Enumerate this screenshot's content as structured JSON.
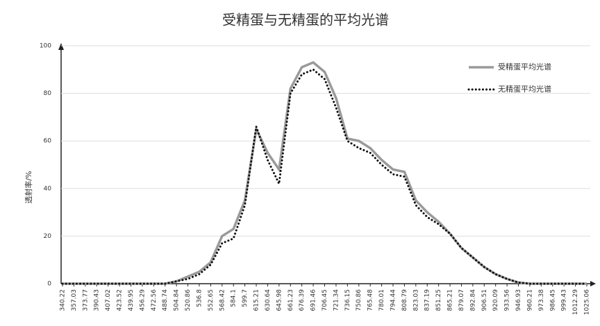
{
  "chart_data": {
    "type": "line",
    "title": "受精蛋与无精蛋的平均光谱",
    "y_label": "透射率/%",
    "categories": [
      "340.22",
      "357.03",
      "373.77",
      "390.43",
      "407.02",
      "423.52",
      "439.95",
      "456.29",
      "472.56",
      "488.74",
      "504.84",
      "520.86",
      "536.8",
      "552.65",
      "568.42",
      "584.1",
      "599.7",
      "615.21",
      "630.64",
      "645.98",
      "661.23",
      "676.39",
      "691.46",
      "706.45",
      "721.34",
      "736.15",
      "750.86",
      "765.48",
      "780.01",
      "794.44",
      "808.79",
      "823.03",
      "837.19",
      "851.25",
      "865.21",
      "879.07",
      "892.84",
      "906.51",
      "920.09",
      "933.56",
      "946.93",
      "960.21",
      "973.38",
      "986.45",
      "999.43",
      "1012.29",
      "1025.06"
    ],
    "series": [
      {
        "name": "受精蛋平均光谱",
        "color": "#9a9a9a",
        "style": "solid",
        "values": [
          0,
          0,
          0,
          0,
          0,
          0,
          0,
          0,
          0,
          0,
          1,
          3,
          5,
          9,
          20,
          23,
          35,
          65,
          55,
          48,
          82,
          91,
          93,
          89,
          78,
          61,
          60,
          57,
          52,
          48,
          47,
          35,
          30,
          26,
          21,
          15,
          11,
          7,
          4,
          2,
          0.5,
          0,
          0,
          0,
          0,
          0,
          0
        ]
      },
      {
        "name": "无精蛋平均光谱",
        "color": "#111111",
        "style": "dotted",
        "values": [
          0,
          0,
          0,
          0,
          0,
          0,
          0,
          0,
          0,
          0,
          1,
          2,
          4,
          8,
          17,
          19,
          33,
          66,
          52,
          42,
          80,
          88,
          90,
          86,
          74,
          60,
          57,
          55,
          50,
          46,
          45,
          33,
          28,
          25,
          21,
          15,
          11,
          7,
          4,
          2,
          0.5,
          0,
          0,
          0,
          0,
          0,
          0
        ]
      }
    ],
    "ylim": [
      0,
      100
    ],
    "yticks": [
      0,
      20,
      40,
      60,
      80,
      100
    ],
    "grid": true,
    "legend": "top-right"
  }
}
